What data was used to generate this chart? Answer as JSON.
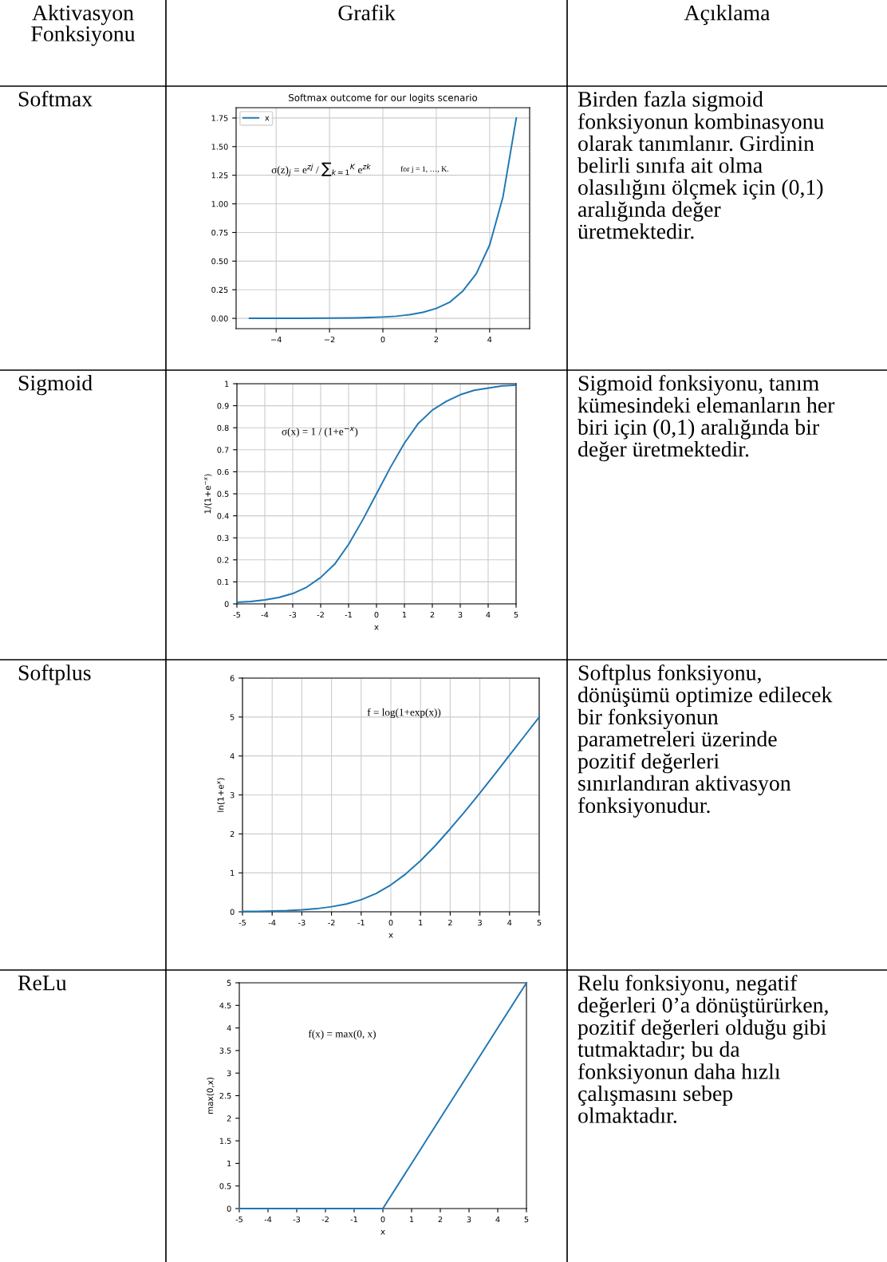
{
  "chart_data": [
    {
      "type": "other",
      "annotations": [
        "Aktivasyon\nFonksiyonu",
        "Grafik",
        "Açıklama",
        "Softmax",
        "Birden fazla sigmoid\nfonksiyonun kombinasyonu\nolarak tanımlanır. Girdinin\nbelirli sınıfa ait olma\nolasılığını ölçmek için (0,1)\naralığında değer\nüretmektedir.",
        "Sigmoid",
        "Sigmoid fonksiyonu, tanım\nkümesindeki elemanların her\nbiri için (0,1) aralığında bir\ndeğer üretmektedir.",
        "Softplus",
        "Softplus fonksiyonu,\ndönüşümü optimize edilecek\nbir fonksiyonun\nparametreleri üzerinde\npozitif değerleri\nsınırlandıran aktivasyon\nfonksiyonudur.",
        "ReLu",
        "Relu fonksiyonu, negatif\ndeğerleri 0’a dönüştürürken,\npozitif değerleri olduğu gibi\ntutmaktadır; bu da\nfonksiyonun daha hızlı\nçalışmasını sebep\nolmaktadır."
      ]
    },
    {
      "type": "line",
      "title": "Softmax outcome for our logits scenario",
      "x": [
        -5,
        -4,
        -3,
        -2,
        -1,
        -0.5,
        0,
        0.5,
        1,
        1.5,
        2,
        2.5,
        3,
        3.5,
        4,
        4.5,
        5
      ],
      "series": [
        {
          "name": "x",
          "color": "#1f77b4",
          "values": [
            0,
            0,
            0.001,
            0.002,
            0.004,
            0.007,
            0.012,
            0.019,
            0.032,
            0.053,
            0.087,
            0.14,
            0.24,
            0.39,
            0.64,
            1.06,
            1.75
          ]
        }
      ],
      "xlim": [
        -5.5,
        5.5
      ],
      "ylim": [
        -0.09,
        1.84
      ],
      "xticks": [
        {
          "value": -4,
          "label": "−4"
        },
        {
          "value": -2,
          "label": "−2"
        },
        0,
        2,
        4
      ],
      "yticks": [
        {
          "value": 0,
          "label": "0.00"
        },
        {
          "value": 0.25,
          "label": "0.25"
        },
        {
          "value": 0.5,
          "label": "0.50"
        },
        {
          "value": 0.75,
          "label": "0.75"
        },
        {
          "value": 1,
          "label": "1.00"
        },
        {
          "value": 1.25,
          "label": "1.25"
        },
        {
          "value": 1.5,
          "label": "1.50"
        },
        {
          "value": 1.75,
          "label": "1.75"
        }
      ],
      "grid": true,
      "legend": "top left",
      "annotations": [
        "σ(z)$_{j}$ = e$^{zj}$ / ∑$_{k=1}$$^{K}$ e$^{zk}$",
        "for j = 1, …, K."
      ]
    },
    {
      "type": "line",
      "x": [
        -5,
        -4.5,
        -4,
        -3.5,
        -3,
        -2.5,
        -2,
        -1.5,
        -1,
        -0.5,
        0,
        0.5,
        1,
        1.5,
        2,
        2.5,
        3,
        3.5,
        4,
        4.5,
        5
      ],
      "series": [
        {
          "color": "#1f77b4",
          "values": [
            0.007,
            0.011,
            0.018,
            0.029,
            0.047,
            0.076,
            0.12,
            0.18,
            0.27,
            0.38,
            0.5,
            0.62,
            0.73,
            0.82,
            0.88,
            0.92,
            0.95,
            0.97,
            0.98,
            0.99,
            0.993
          ]
        }
      ],
      "xlim": [
        -5,
        5
      ],
      "ylim": [
        0,
        1
      ],
      "xticks": [
        -5,
        -4,
        -3,
        -2,
        -1,
        0,
        1,
        2,
        3,
        4,
        5
      ],
      "yticks": [
        0,
        0.1,
        0.2,
        0.3,
        0.4,
        0.5,
        0.6,
        0.7,
        0.8,
        0.9,
        1
      ],
      "grid": true,
      "xlabel": "x",
      "ylabel": "1/(1+e$^{−x}$)",
      "annotations": [
        "σ(x) = 1 / (1+e$^{−x}$)"
      ]
    },
    {
      "type": "line",
      "x": [
        -5,
        -4.5,
        -4,
        -3.5,
        -3,
        -2.5,
        -2,
        -1.5,
        -1,
        -0.5,
        0,
        0.5,
        1,
        1.5,
        2,
        2.5,
        3,
        3.5,
        4,
        4.5,
        5
      ],
      "series": [
        {
          "color": "#1f77b4",
          "values": [
            0.01,
            0.01,
            0.02,
            0.03,
            0.05,
            0.08,
            0.13,
            0.2,
            0.31,
            0.47,
            0.69,
            0.97,
            1.31,
            1.7,
            2.13,
            2.58,
            3.05,
            3.53,
            4.02,
            4.51,
            5.0
          ]
        }
      ],
      "xlim": [
        -5,
        5
      ],
      "ylim": [
        0,
        6
      ],
      "xticks": [
        -5,
        -4,
        -3,
        -2,
        -1,
        0,
        1,
        2,
        3,
        4,
        5
      ],
      "yticks": [
        0,
        1,
        2,
        3,
        4,
        5,
        6
      ],
      "grid": true,
      "xlabel": "x",
      "ylabel": "ln(1+e$^{x}$)",
      "annotations": [
        "f = log(1+exp(x))"
      ]
    },
    {
      "type": "line",
      "x": [
        -5,
        -4,
        -3,
        -2,
        -1,
        0,
        1,
        2,
        3,
        4,
        5
      ],
      "series": [
        {
          "color": "#1f77b4",
          "values": [
            0,
            0,
            0,
            0,
            0,
            0,
            1,
            2,
            3,
            4,
            5
          ]
        }
      ],
      "xlim": [
        -5,
        5
      ],
      "ylim": [
        0,
        5
      ],
      "xticks": [
        -5,
        -4,
        -3,
        -2,
        -1,
        0,
        1,
        2,
        3,
        4,
        5
      ],
      "yticks": [
        0,
        0.5,
        1,
        1.5,
        2,
        2.5,
        3,
        3.5,
        4,
        4.5,
        5
      ],
      "xlabel": "x",
      "ylabel": "max(0,x)",
      "annotations": [
        "f(x) = max(0, x)"
      ]
    }
  ]
}
